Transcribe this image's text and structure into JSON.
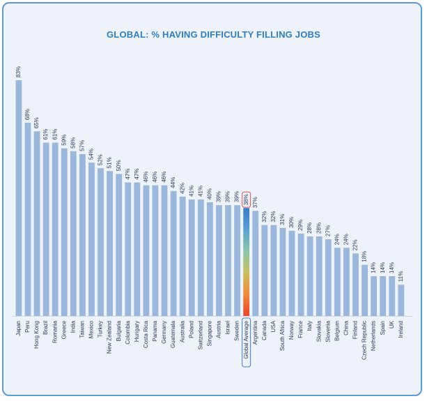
{
  "chart_data": {
    "type": "bar",
    "title": "GLOBAL: % HAVING DIFFICULTY FILLING JOBS",
    "xlabel": "",
    "ylabel": "",
    "ylim": [
      0,
      83
    ],
    "grid": false,
    "legend": "none",
    "value_suffix": "%",
    "bar_color": "#9bb8dc",
    "highlight_category": "Global Average",
    "highlight_gradient": [
      "#3a7cc8",
      "#5aa0d2",
      "#8cc6a8",
      "#c9c060",
      "#f08a3a",
      "#e9442e"
    ],
    "highlight_outline": "#e05050",
    "categories": [
      "Japan",
      "Peru",
      "Hong Kong",
      "Brazil",
      "Romania",
      "Greece",
      "India",
      "Taiwan",
      "Mexico",
      "Turkey",
      "New Zealand",
      "Bulgaria",
      "Colombia",
      "Hungary",
      "Costa Rica",
      "Panama",
      "Germany",
      "Guatemala",
      "Australia",
      "Poland",
      "Switzerland",
      "Singapore",
      "Austria",
      "Israel",
      "Sweden",
      "Global Average",
      "Argentina",
      "Canada",
      "USA",
      "South Africa",
      "Norway",
      "France",
      "Italy",
      "Slovakia",
      "Slovenia",
      "Belgium",
      "China",
      "Finland",
      "Czech Republic",
      "Netherlands",
      "Spain",
      "UK",
      "Ireland"
    ],
    "values": [
      83,
      68,
      65,
      61,
      61,
      59,
      58,
      57,
      54,
      52,
      51,
      50,
      47,
      47,
      46,
      46,
      46,
      44,
      42,
      41,
      41,
      40,
      39,
      39,
      39,
      38,
      37,
      32,
      32,
      31,
      30,
      29,
      28,
      28,
      27,
      24,
      24,
      22,
      18,
      14,
      14,
      14,
      11
    ]
  }
}
